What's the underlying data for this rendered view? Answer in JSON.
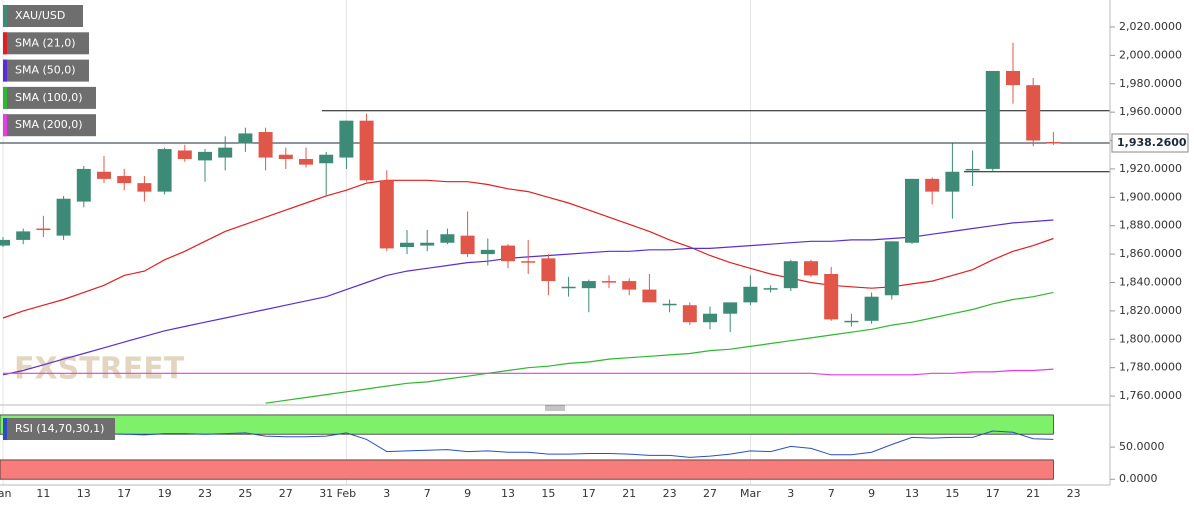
{
  "chart_data": [
    {
      "type": "candlestick",
      "categories": [
        "Jan",
        null,
        "11",
        null,
        "13",
        null,
        "17",
        null,
        "19",
        null,
        "23",
        null,
        "25",
        null,
        "27",
        null,
        "31",
        "Feb",
        null,
        "3",
        null,
        "7",
        null,
        "9",
        null,
        "13",
        null,
        "15",
        null,
        "17",
        null,
        "21",
        null,
        "23",
        null,
        "27",
        null,
        "Mar",
        null,
        "3",
        null,
        "7",
        null,
        "9",
        null,
        "13",
        null,
        "15",
        null,
        "17",
        null,
        "21",
        null,
        "23"
      ],
      "series": [
        {
          "name": "XAU/USD",
          "color_up": "#3d8b77",
          "color_down": "#e0574a",
          "open": [
            1866,
            1870,
            1878,
            1873,
            1897,
            1918,
            1915,
            1910,
            1904,
            1933,
            1926,
            1928,
            1938,
            1946,
            1930,
            1927,
            1924,
            1928,
            1954,
            1912,
            1865,
            1866,
            1868,
            1873,
            1860,
            1866,
            1855,
            1857,
            1837,
            1836,
            1841,
            1841,
            1835,
            1825,
            1824,
            1812,
            1818,
            1826,
            1836,
            1836,
            1855,
            1846,
            1813,
            1813,
            1831,
            1868,
            1913,
            1904,
            1919,
            1920,
            1989,
            1979,
            1939,
            null
          ],
          "high": [
            1872,
            1878,
            1887,
            1901,
            1922,
            1929,
            1920,
            1915,
            1935,
            1937,
            1934,
            1943,
            1949,
            1949,
            1935,
            1935,
            1932,
            1954,
            1959,
            1919,
            1877,
            1877,
            1878,
            1890,
            1871,
            1867,
            1870,
            1860,
            1844,
            1842,
            1845,
            1843,
            1846,
            1828,
            1826,
            1823,
            1825,
            1845,
            1838,
            1856,
            1856,
            1851,
            1818,
            1833,
            1869,
            1913,
            1914,
            1938,
            1933,
            1989,
            2009,
            1984,
            1946,
            null
          ],
          "low": [
            1865,
            1867,
            1872,
            1870,
            1893,
            1910,
            1905,
            1897,
            1902,
            1925,
            1911,
            1919,
            1932,
            1919,
            1920,
            1921,
            1901,
            1920,
            1911,
            1862,
            1860,
            1862,
            1867,
            1858,
            1852,
            1850,
            1846,
            1831,
            1830,
            1819,
            1836,
            1831,
            1826,
            1819,
            1810,
            1807,
            1805,
            1824,
            1833,
            1834,
            1844,
            1813,
            1809,
            1811,
            1828,
            1867,
            1895,
            1885,
            1908,
            1918,
            1966,
            1936,
            1937,
            null
          ],
          "close": [
            1870,
            1876,
            1877,
            1899,
            1920,
            1913,
            1910,
            1904,
            1934,
            1927,
            1932,
            1935,
            1945,
            1928,
            1927,
            1923,
            1930,
            1954,
            1912,
            1864,
            1868,
            1868,
            1874,
            1860,
            1863,
            1855,
            1854,
            1841,
            1837,
            1841,
            1840,
            1835,
            1826,
            1825,
            1812,
            1818,
            1826,
            1837,
            1836,
            1855,
            1845,
            1814,
            1813,
            1830,
            1869,
            1913,
            1904,
            1918,
            1920,
            1989,
            1979,
            1940,
            1938.26,
            null
          ]
        }
      ],
      "overlays": [
        {
          "name": "SMA (21,0)",
          "color": "#e02020",
          "values": [
            1815,
            1820,
            1824,
            1828,
            1833,
            1838,
            1845,
            1848,
            1856,
            1862,
            1869,
            1876,
            1881,
            1886,
            1891,
            1896,
            1901,
            1905,
            1910,
            1912,
            1912,
            1912,
            1911,
            1911,
            1909,
            1906,
            1904,
            1900,
            1896,
            1891,
            1886,
            1881,
            1876,
            1870,
            1865,
            1859,
            1854,
            1850,
            1846,
            1843,
            1840,
            1838,
            1837,
            1836,
            1837,
            1839,
            1841,
            1845,
            1849,
            1856,
            1862,
            1866,
            1871,
            null
          ]
        },
        {
          "name": "SMA (50,0)",
          "color": "#5a2fd0",
          "values": [
            1775,
            1778,
            1782,
            1786,
            1790,
            1794,
            1798,
            1802,
            1806,
            1809,
            1812,
            1815,
            1818,
            1821,
            1824,
            1827,
            1830,
            1835,
            1840,
            1845,
            1848,
            1850,
            1852,
            1854,
            1855,
            1857,
            1858,
            1859,
            1860,
            1861,
            1862,
            1862,
            1863,
            1863,
            1864,
            1864,
            1865,
            1866,
            1867,
            1868,
            1869,
            1869,
            1870,
            1870,
            1871,
            1872,
            1874,
            1876,
            1878,
            1880,
            1882,
            1883,
            1884,
            null
          ]
        },
        {
          "name": "SMA (100,0)",
          "color": "#2eb82e",
          "values": [
            null,
            null,
            null,
            null,
            null,
            null,
            null,
            null,
            null,
            null,
            null,
            null,
            null,
            1755,
            1757,
            1759,
            1761,
            1763,
            1765,
            1767,
            1769,
            1770,
            1772,
            1774,
            1776,
            1778,
            1780,
            1781,
            1783,
            1784,
            1786,
            1787,
            1788,
            1789,
            1790,
            1792,
            1793,
            1795,
            1797,
            1799,
            1801,
            1803,
            1805,
            1807,
            1810,
            1812,
            1815,
            1818,
            1821,
            1825,
            1828,
            1830,
            1833,
            null
          ]
        },
        {
          "name": "SMA (200,0)",
          "color": "#e63ce6",
          "values": [
            1776,
            1776,
            1776,
            1776,
            1776,
            1776,
            1776,
            1776,
            1776,
            1776,
            1776,
            1776,
            1776,
            1776,
            1776,
            1776,
            1776,
            1776,
            1776,
            1776,
            1776,
            1776,
            1776,
            1776,
            1776,
            1776,
            1776,
            1776,
            1776,
            1776,
            1776,
            1776,
            1776,
            1776,
            1776,
            1776,
            1776,
            1776,
            1776,
            1776,
            1776,
            1775,
            1775,
            1775,
            1775,
            1775,
            1776,
            1776,
            1777,
            1777,
            1778,
            1778,
            1779,
            null
          ]
        }
      ],
      "levels": [
        1961,
        1918
      ],
      "last_price": {
        "value": 1938.26,
        "label": "1,938.2600"
      },
      "ylim": [
        1753.7,
        2039
      ],
      "yticks": [
        {
          "value": 1760,
          "label": "1,760.0000"
        },
        {
          "value": 1780,
          "label": "1,780.0000"
        },
        {
          "value": 1800,
          "label": "1,800.0000"
        },
        {
          "value": 1820,
          "label": "1,820.0000"
        },
        {
          "value": 1840,
          "label": "1,840.0000"
        },
        {
          "value": 1860,
          "label": "1,860.0000"
        },
        {
          "value": 1880,
          "label": "1,880.0000"
        },
        {
          "value": 1900,
          "label": "1,900.0000"
        },
        {
          "value": 1920,
          "label": "1,920.0000"
        },
        {
          "value": 1940,
          "label": "1,940.0000"
        },
        {
          "value": 1960,
          "label": "1,960.0000"
        },
        {
          "value": 1980,
          "label": "1,980.0000"
        },
        {
          "value": 2000,
          "label": "2,000.0000"
        },
        {
          "value": 2020,
          "label": "2,020.0000"
        }
      ],
      "watermark": "FXSTREET"
    },
    {
      "type": "line",
      "series": [
        {
          "name": "RSI (14,70,30,1)",
          "color": "#2a4fc4",
          "values": [
            68,
            70,
            69,
            71,
            72,
            71,
            70,
            69,
            71,
            71,
            70,
            71,
            72,
            67,
            66,
            66,
            67,
            72,
            62,
            43,
            44,
            45,
            46,
            43,
            44,
            42,
            42,
            39,
            39,
            40,
            40,
            39,
            37,
            37,
            34,
            36,
            39,
            44,
            43,
            51,
            48,
            38,
            38,
            42,
            54,
            65,
            64,
            65,
            65,
            75,
            73,
            63,
            62,
            null
          ]
        }
      ],
      "bands": [
        {
          "from": 70,
          "to": 100,
          "color": "#7ef06a"
        },
        {
          "from": 0,
          "to": 30,
          "color": "#f77c7c"
        }
      ],
      "ylim": [
        -9,
        103
      ],
      "yticks": [
        {
          "value": 50,
          "label": "50.0000"
        },
        {
          "value": 0,
          "label": "0.0000"
        }
      ]
    }
  ]
}
